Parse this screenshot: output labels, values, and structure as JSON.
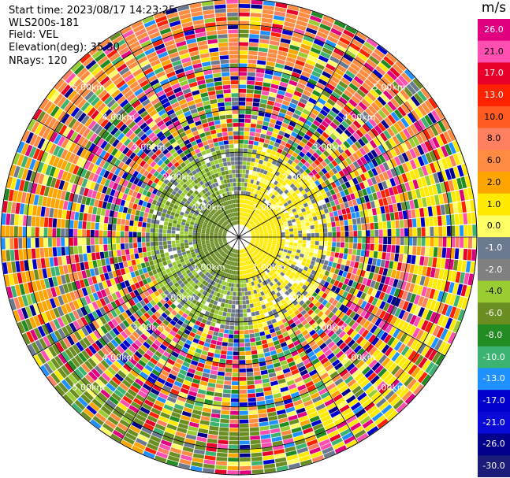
{
  "header": {
    "start_time": "Start time: 2023/08/17 14:23:25",
    "instrument": "WLS200s-181",
    "field": "Field: VEL",
    "elevation": "Elevation(deg): 35.30",
    "nrays": "NRays: 120"
  },
  "colorbar": {
    "title": "m/s",
    "ticks": [
      "26.0",
      "21.0",
      "17.0",
      "13.0",
      "10.0",
      "8.0",
      "6.0",
      "2.0",
      "1.0",
      "0.0",
      "-1.0",
      "-2.0",
      "-4.0",
      "-6.0",
      "-8.0",
      "-10.0",
      "-13.0",
      "-17.0",
      "-21.0",
      "-26.0",
      "-30.0"
    ],
    "colors": [
      "#e0007f",
      "#ff4fb0",
      "#e8002a",
      "#ff2200",
      "#ff5a1f",
      "#ff8060",
      "#ff8c40",
      "#ffa500",
      "#ffea00",
      "#ffff66",
      "#6b7a8f",
      "#808080",
      "#9acd32",
      "#6b8e23",
      "#228b22",
      "#3cb371",
      "#1e90ff",
      "#0000cd",
      "#0a0ad8",
      "#00008b",
      "#1b1b7a"
    ]
  },
  "chart_data": {
    "type": "heatmap",
    "projection": "polar (PPI)",
    "field": "VEL",
    "units": "m/s",
    "nrays": 120,
    "range_ring_labels_km": [
      "1.00km",
      "2.00km",
      "3.00km",
      "4.00km",
      "5.00km"
    ],
    "range_rings_km": [
      1,
      2,
      3,
      4,
      5
    ],
    "max_range_km": 5.6,
    "color_range": [
      -30,
      26
    ],
    "grid": true
  }
}
